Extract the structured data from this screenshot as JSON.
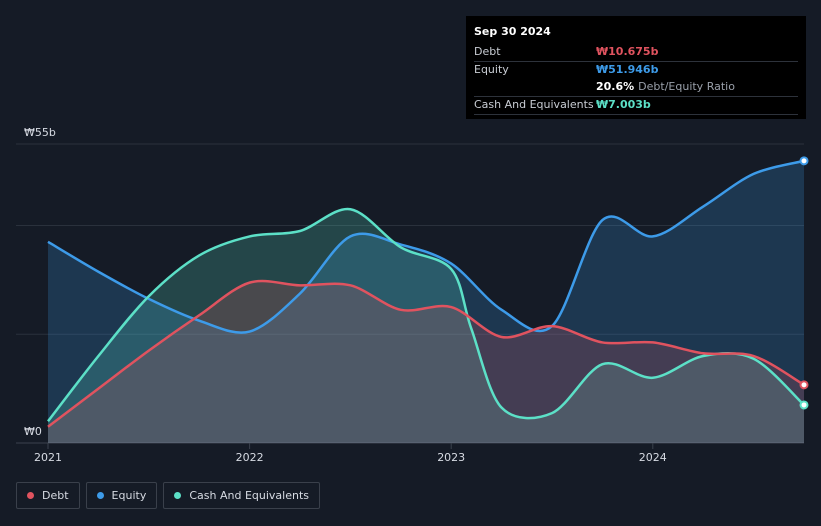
{
  "tooltip": {
    "date": "Sep 30 2024",
    "rows": [
      {
        "label": "Debt",
        "value": "₩10.675b",
        "color": "#e0535f"
      },
      {
        "label": "Equity",
        "value": "₩51.946b",
        "color": "#3d9be9"
      },
      {
        "label": "",
        "value": "20.6%",
        "extra": "Debt/Equity Ratio"
      },
      {
        "label": "Cash And Equivalents",
        "value": "₩7.003b",
        "color": "#5ce0c7"
      }
    ]
  },
  "legend": [
    {
      "label": "Debt",
      "color": "#e0535f"
    },
    {
      "label": "Equity",
      "color": "#3d9be9"
    },
    {
      "label": "Cash And Equivalents",
      "color": "#5ce0c7"
    }
  ],
  "chart_data": {
    "type": "area",
    "title": "",
    "xlabel": "",
    "ylabel": "",
    "y_top_label": "₩55b",
    "y_bottom_label": "₩0",
    "ylim": [
      0,
      55
    ],
    "xlim": [
      2021.0,
      2024.75
    ],
    "x_ticks": [
      2021,
      2022,
      2023,
      2024
    ],
    "x_tick_labels": [
      "2021",
      "2022",
      "2023",
      "2024"
    ],
    "grid": true,
    "series": [
      {
        "name": "Equity",
        "color": "#3d9be9",
        "x": [
          2021.0,
          2021.25,
          2021.5,
          2021.75,
          2022.0,
          2022.25,
          2022.5,
          2022.75,
          2023.0,
          2023.25,
          2023.5,
          2023.75,
          2024.0,
          2024.25,
          2024.5,
          2024.75
        ],
        "values": [
          37,
          31.5,
          26.5,
          22.5,
          20.5,
          27.5,
          38,
          36.5,
          33,
          24.5,
          21.5,
          41,
          38,
          43.5,
          49.5,
          51.9
        ]
      },
      {
        "name": "Cash And Equivalents",
        "color": "#5ce0c7",
        "x": [
          2021.0,
          2021.25,
          2021.5,
          2021.75,
          2022.0,
          2022.25,
          2022.5,
          2022.75,
          2023.0,
          2023.1,
          2023.25,
          2023.5,
          2023.75,
          2024.0,
          2024.25,
          2024.5,
          2024.75
        ],
        "values": [
          4,
          16,
          27,
          34.5,
          38,
          39,
          43,
          36,
          32,
          21,
          6.5,
          5.5,
          14.5,
          12,
          16,
          15.5,
          7.0
        ]
      },
      {
        "name": "Debt",
        "color": "#e0535f",
        "x": [
          2021.0,
          2021.25,
          2021.5,
          2021.75,
          2022.0,
          2022.25,
          2022.5,
          2022.75,
          2023.0,
          2023.25,
          2023.5,
          2023.75,
          2024.0,
          2024.25,
          2024.5,
          2024.75
        ],
        "values": [
          3,
          10,
          17,
          23.5,
          29.5,
          29,
          29,
          24.5,
          25,
          19.5,
          21.5,
          18.5,
          18.5,
          16.5,
          16,
          10.7
        ]
      }
    ]
  }
}
